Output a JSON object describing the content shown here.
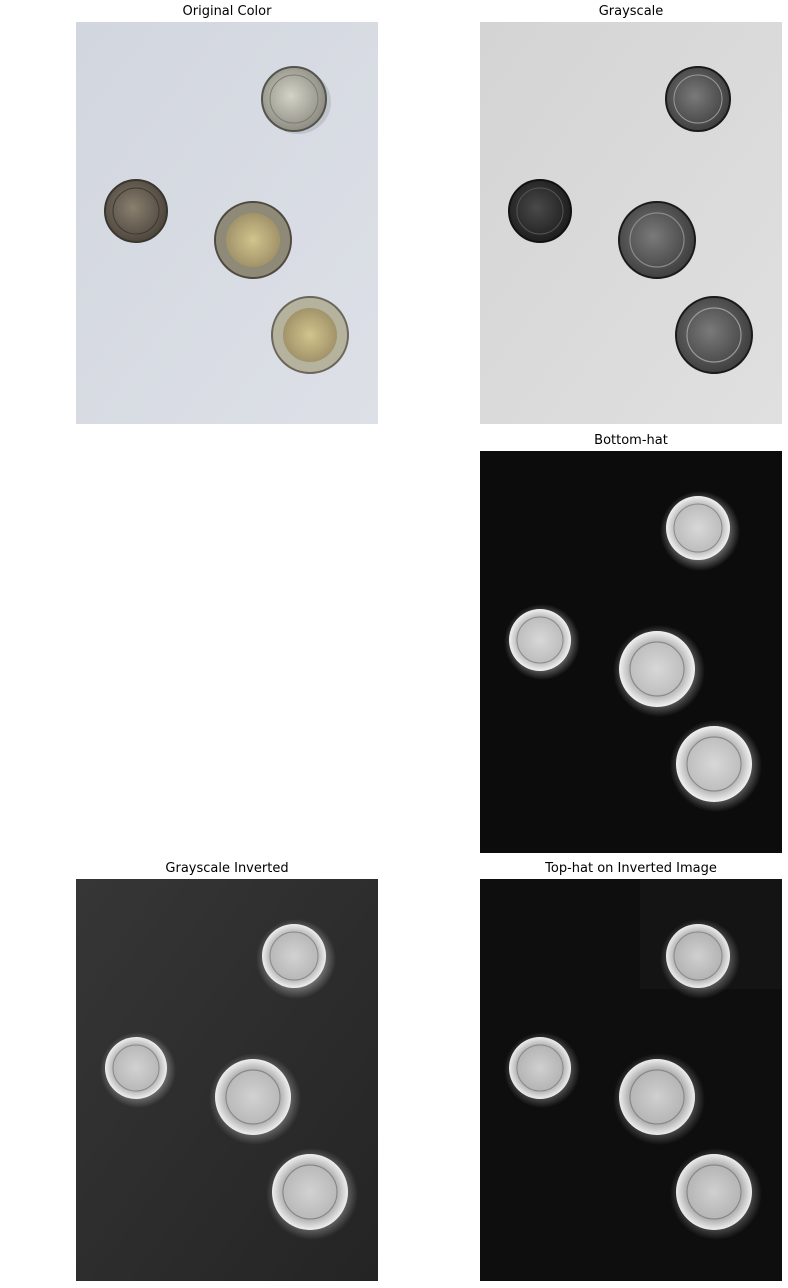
{
  "panels": [
    {
      "id": "original",
      "title": "Original Color",
      "mode": "color"
    },
    {
      "id": "grayscale",
      "title": "Grayscale",
      "mode": "gray"
    },
    {
      "id": "bottomhat",
      "title": "Bottom-hat",
      "mode": "bothat"
    },
    {
      "id": "inverted",
      "title": "Grayscale Inverted",
      "mode": "inverted"
    },
    {
      "id": "tophat",
      "title": "Top-hat on Inverted Image",
      "mode": "tophat"
    }
  ],
  "coins": [
    {
      "label": "top-right small coin",
      "tone": "silver"
    },
    {
      "label": "left small coin",
      "tone": "dark"
    },
    {
      "label": "center bimetal coin",
      "tone": "bimetal"
    },
    {
      "label": "bottom-right bimetal coin",
      "tone": "bimetal"
    }
  ],
  "colors": {
    "paper_color": "#d6dae2",
    "paper_gray": "#d8d8d8",
    "inverted_bg": "#2e2e2e",
    "bottomhat_bg": "#0c0c0c",
    "tophat_bg": "#0e0e0e",
    "coin_silver": "#b9b8ad",
    "coin_dark": "#6e6558",
    "coin_gold": "#b8aa7a",
    "coin_ring": "#cfcdbf"
  }
}
